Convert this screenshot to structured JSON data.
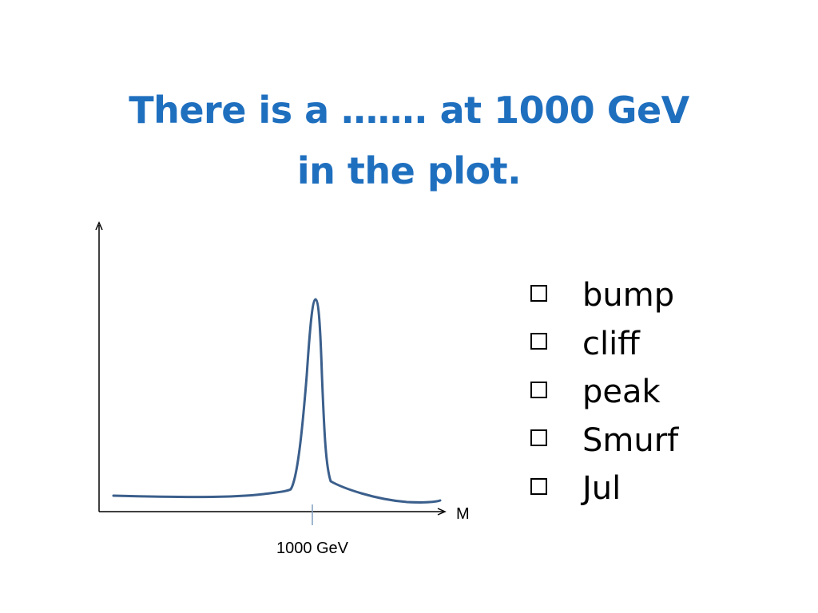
{
  "slide": {
    "title_line1": "There is a ……. at 1000 GeV",
    "title_line2": "in the plot.",
    "title_color": "#1f6fbf"
  },
  "options": [
    {
      "label": "bump",
      "icon": "checkbox-icon"
    },
    {
      "label": "cliff",
      "icon": "checkbox-icon"
    },
    {
      "label": "peak",
      "icon": "checkbox-icon"
    },
    {
      "label": "Smurf",
      "icon": "checkbox-icon"
    },
    {
      "label": "Jul",
      "icon": "checkbox-icon"
    }
  ],
  "chart_data": {
    "type": "line",
    "xlabel": "M",
    "ylabel": "",
    "x_tick_labels": [
      "1000 GeV"
    ],
    "peak_at": "1000 GeV",
    "line_color": "#3b5f8c",
    "axis_color": "#000000",
    "tick_color": "#7f9fc0"
  }
}
